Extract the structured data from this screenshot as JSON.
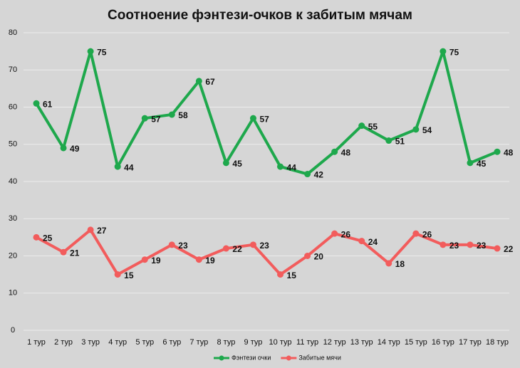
{
  "chart_data": {
    "type": "line",
    "title": "Соотноение фэнтези-очков к забитым мячам",
    "categories": [
      "1 тур",
      "2 тур",
      "3 тур",
      "4 тур",
      "5 тур",
      "6 тур",
      "7 тур",
      "8 тур",
      "9 тур",
      "10 тур",
      "11 тур",
      "12 тур",
      "13 тур",
      "14 тур",
      "15 тур",
      "16 тур",
      "17 тур",
      "18 тур"
    ],
    "series": [
      {
        "name": "Фэнтези очки",
        "color": "#1ea84c",
        "values": [
          61,
          49,
          75,
          44,
          57,
          58,
          67,
          45,
          57,
          44,
          42,
          48,
          55,
          51,
          54,
          75,
          45,
          48
        ]
      },
      {
        "name": "Забитые мячи",
        "color": "#f25c5c",
        "values": [
          25,
          21,
          27,
          15,
          19,
          23,
          19,
          22,
          23,
          15,
          20,
          26,
          24,
          18,
          26,
          23,
          23,
          22
        ]
      }
    ],
    "ylim": [
      0,
      80
    ],
    "yticks": [
      0,
      10,
      20,
      30,
      40,
      50,
      60,
      70,
      80
    ],
    "grid": true,
    "legend": "bottom"
  }
}
